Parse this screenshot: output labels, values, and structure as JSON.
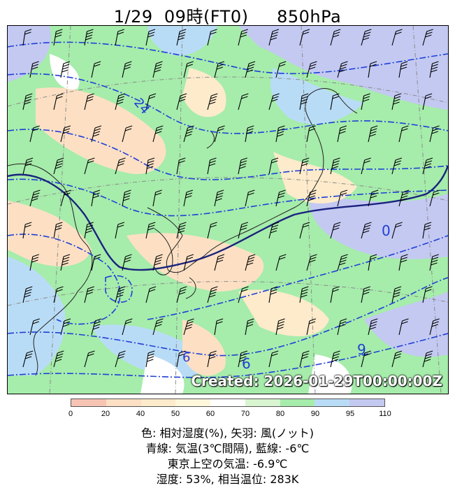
{
  "header": {
    "title": "1/29  09時(FT0)     850hPa"
  },
  "map": {
    "created_stamp": "Created: 2026-01-29T00:00:00Z",
    "contour_labels": [
      "24",
      "0",
      "6",
      "9",
      "6"
    ]
  },
  "legend": {
    "ticks": [
      "0",
      "20",
      "40",
      "50",
      "60",
      "70",
      "80",
      "90",
      "95",
      "110"
    ],
    "colors": [
      "#f7c4b4",
      "#fde0c4",
      "#fdebcb",
      "#fff7dc",
      "#ffffff",
      "#d8f5d0",
      "#a6ecab",
      "#b9dcf6",
      "#c4c9f2"
    ]
  },
  "captions": {
    "line1": "色: 相対湿度(%),  矢羽: 風(ノット)",
    "line2": "青線: 気温(3℃間隔), 藍線: -6℃",
    "line3": "東京上空の気温: -6.9℃",
    "line4": "湿度: 53%, 相当温位: 283K"
  }
}
